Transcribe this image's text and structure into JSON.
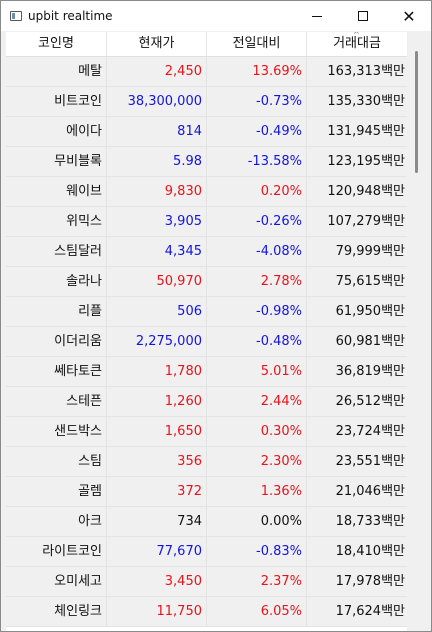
{
  "window": {
    "title": "upbit realtime",
    "minimize_icon": "minimize-icon",
    "maximize_icon": "maximize-icon",
    "close_icon": "close-icon",
    "close_glyph": "✕"
  },
  "table": {
    "headers": [
      "코인명",
      "현재가",
      "전일대비",
      "거래대금"
    ],
    "sorted_column": "거래대금",
    "colors": {
      "up": "#e8131b",
      "down": "#1414e0",
      "flat": "#111111"
    },
    "rows": [
      {
        "name": "메탈",
        "price": "2,450",
        "change": "13.69%",
        "volume": "163,313백만",
        "dir": "up"
      },
      {
        "name": "비트코인",
        "price": "38,300,000",
        "change": "-0.73%",
        "volume": "135,330백만",
        "dir": "down"
      },
      {
        "name": "에이다",
        "price": "814",
        "change": "-0.49%",
        "volume": "131,945백만",
        "dir": "down"
      },
      {
        "name": "무비블록",
        "price": "5.98",
        "change": "-13.58%",
        "volume": "123,195백만",
        "dir": "down"
      },
      {
        "name": "웨이브",
        "price": "9,830",
        "change": "0.20%",
        "volume": "120,948백만",
        "dir": "up"
      },
      {
        "name": "위믹스",
        "price": "3,905",
        "change": "-0.26%",
        "volume": "107,279백만",
        "dir": "down"
      },
      {
        "name": "스팀달러",
        "price": "4,345",
        "change": "-4.08%",
        "volume": "79,999백만",
        "dir": "down"
      },
      {
        "name": "솔라나",
        "price": "50,970",
        "change": "2.78%",
        "volume": "75,615백만",
        "dir": "up"
      },
      {
        "name": "리플",
        "price": "506",
        "change": "-0.98%",
        "volume": "61,950백만",
        "dir": "down"
      },
      {
        "name": "이더리움",
        "price": "2,275,000",
        "change": "-0.48%",
        "volume": "60,981백만",
        "dir": "down"
      },
      {
        "name": "쎄타토큰",
        "price": "1,780",
        "change": "5.01%",
        "volume": "36,819백만",
        "dir": "up"
      },
      {
        "name": "스테픈",
        "price": "1,260",
        "change": "2.44%",
        "volume": "26,512백만",
        "dir": "up"
      },
      {
        "name": "샌드박스",
        "price": "1,650",
        "change": "0.30%",
        "volume": "23,724백만",
        "dir": "up"
      },
      {
        "name": "스팀",
        "price": "356",
        "change": "2.30%",
        "volume": "23,551백만",
        "dir": "up"
      },
      {
        "name": "골렘",
        "price": "372",
        "change": "1.36%",
        "volume": "21,046백만",
        "dir": "up"
      },
      {
        "name": "아크",
        "price": "734",
        "change": "0.00%",
        "volume": "18,733백만",
        "dir": "flat"
      },
      {
        "name": "라이트코인",
        "price": "77,670",
        "change": "-0.83%",
        "volume": "18,410백만",
        "dir": "down"
      },
      {
        "name": "오미세고",
        "price": "3,450",
        "change": "2.37%",
        "volume": "17,978백만",
        "dir": "up"
      },
      {
        "name": "체인링크",
        "price": "11,750",
        "change": "6.05%",
        "volume": "17,624백만",
        "dir": "up"
      }
    ]
  }
}
